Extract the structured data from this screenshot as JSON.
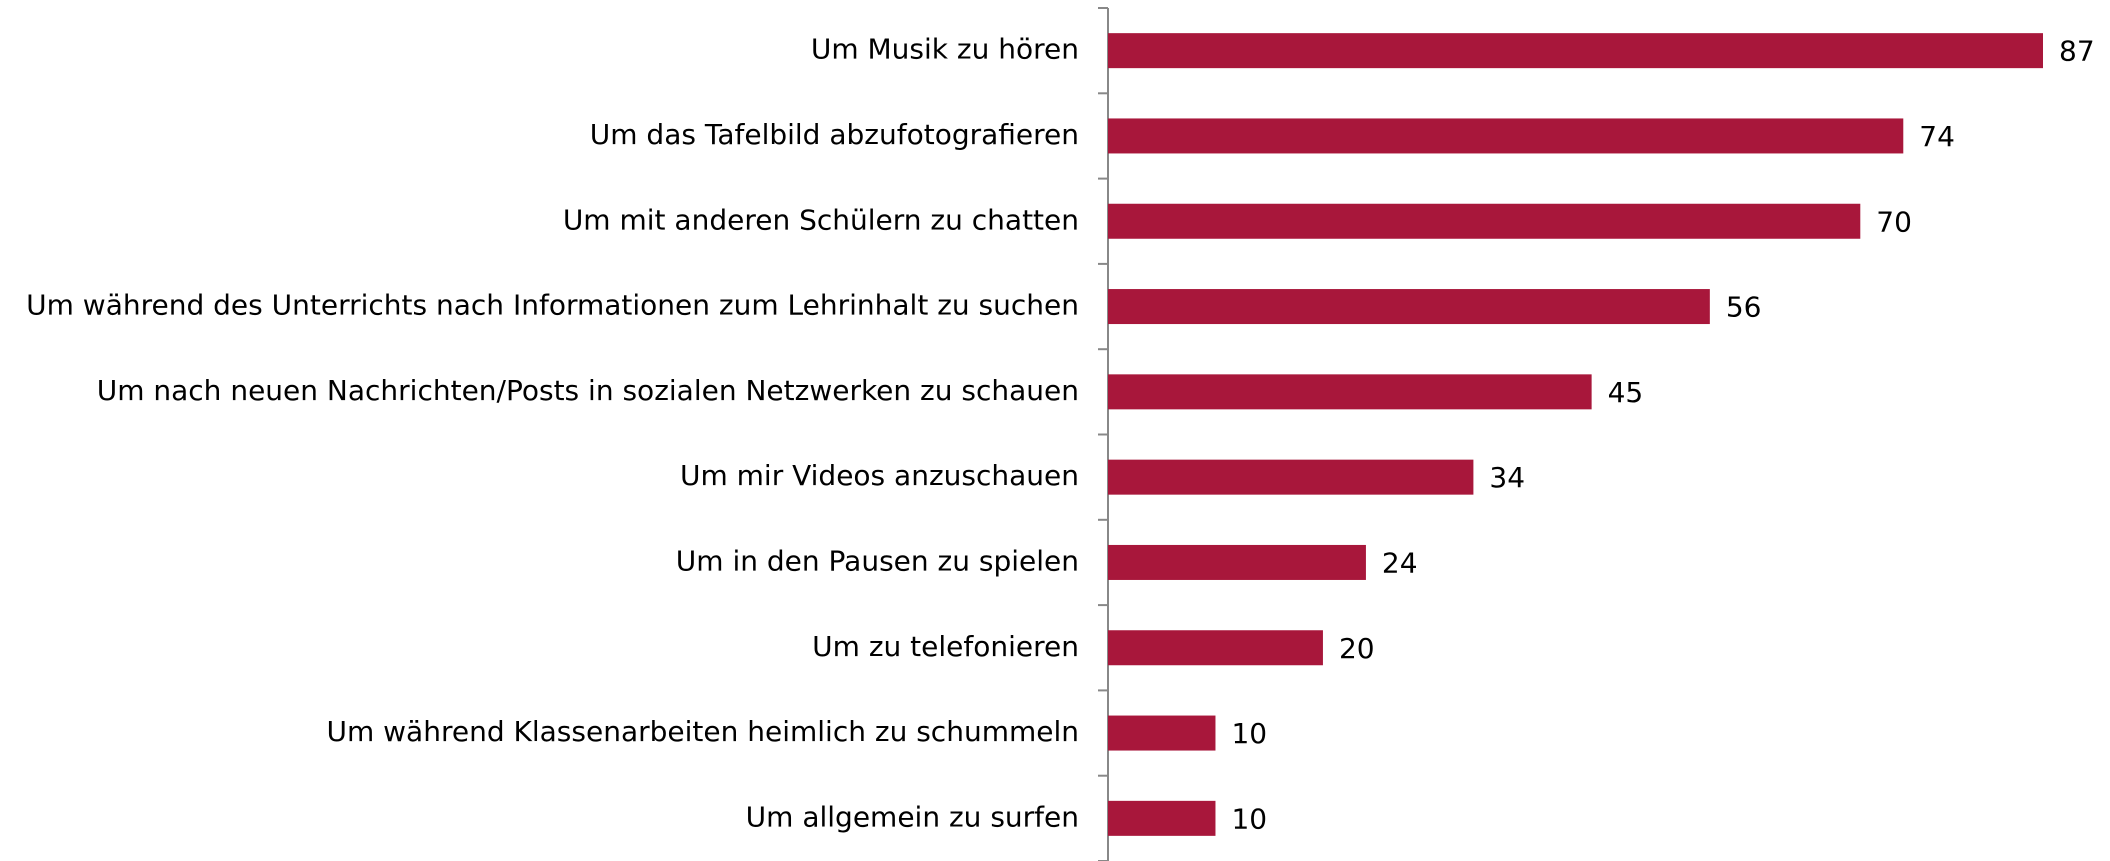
{
  "chart_data": {
    "type": "bar",
    "orientation": "horizontal",
    "categories": [
      "Um Musik zu hören",
      "Um das Tafelbild abzufotografieren",
      "Um mit anderen Schülern zu chatten",
      "Um während des Unterrichts nach Informationen zum Lehrinhalt zu suchen",
      "Um nach neuen Nachrichten/Posts in sozialen Netzwerken zu schauen",
      "Um mir Videos anzuschauen",
      "Um in den Pausen zu spielen",
      "Um zu telefonieren",
      "Um während Klassenarbeiten heimlich zu schummeln",
      "Um allgemein zu surfen"
    ],
    "values": [
      87,
      74,
      70,
      56,
      45,
      34,
      24,
      20,
      10,
      10
    ],
    "color": "#a8173b"
  }
}
